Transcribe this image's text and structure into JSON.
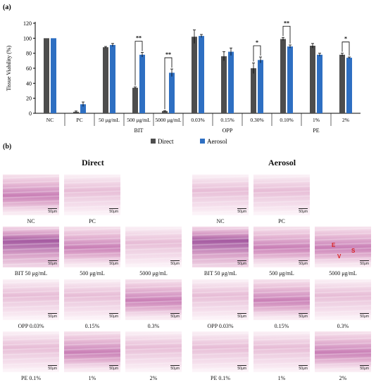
{
  "figure": {
    "panel_a_label": "(a)",
    "panel_b_label": "(b)",
    "direct_title": "Direct",
    "aerosol_title": "Aerosol"
  },
  "chart_data": {
    "type": "bar",
    "ylabel": "Tissue Viability (%)",
    "ylim": [
      0,
      120
    ],
    "yticks": [
      0,
      20,
      40,
      60,
      80,
      100,
      120
    ],
    "categories": [
      "NC",
      "PC",
      "50 μg/mL",
      "500 μg/mL",
      "5000 μg/mL",
      "0.03%",
      "0.15%",
      "0.30%",
      "0.10%",
      "1%",
      "2%"
    ],
    "groups": [
      {
        "label": "BIT",
        "from": 2,
        "to": 4
      },
      {
        "label": "OPP",
        "from": 5,
        "to": 7
      },
      {
        "label": "PE",
        "from": 8,
        "to": 10
      }
    ],
    "series": [
      {
        "name": "Direct",
        "color": "#4d4d4d",
        "values": [
          100,
          2,
          88,
          34,
          3,
          102,
          76,
          60,
          99,
          90,
          78
        ],
        "errors": [
          0,
          1,
          1,
          1,
          0.5,
          9,
          6,
          7,
          2,
          3,
          2
        ]
      },
      {
        "name": "Aerosol",
        "color": "#2e6fc2",
        "values": [
          100,
          12,
          91,
          78,
          54,
          103,
          82,
          71,
          89,
          78,
          74
        ],
        "errors": [
          0,
          3,
          2,
          3,
          5,
          2,
          5,
          4,
          2,
          2,
          1
        ]
      }
    ],
    "annotations": [
      {
        "index": 3,
        "text": "**"
      },
      {
        "index": 4,
        "text": "**"
      },
      {
        "index": 7,
        "text": "*"
      },
      {
        "index": 8,
        "text": "**"
      },
      {
        "index": 10,
        "text": "*"
      }
    ],
    "legend": "bottom-right",
    "grid": false
  },
  "histology": {
    "scale_label": "50μm",
    "direct": {
      "row1": [
        "NC",
        "PC"
      ],
      "row2": [
        "BIT  50 μg/mL",
        "500 μg/mL",
        "5000 μg/mL"
      ],
      "row3": [
        "OPP 0.03%",
        "0.15%",
        "0.3%"
      ],
      "row4": [
        "PE  0.1%",
        "1%",
        "2%"
      ]
    },
    "aerosol": {
      "row1": [
        "NC",
        "PC"
      ],
      "row2": [
        "BIT  50 μg/mL",
        "500 μg/mL",
        "5000 μg/mL"
      ],
      "row3": [
        "OPP 0.03%",
        "0.15%",
        "0.3%"
      ],
      "row4": [
        "PE  0.1%",
        "1%",
        "2%"
      ]
    },
    "markers": [
      "E",
      "V",
      "S"
    ]
  }
}
